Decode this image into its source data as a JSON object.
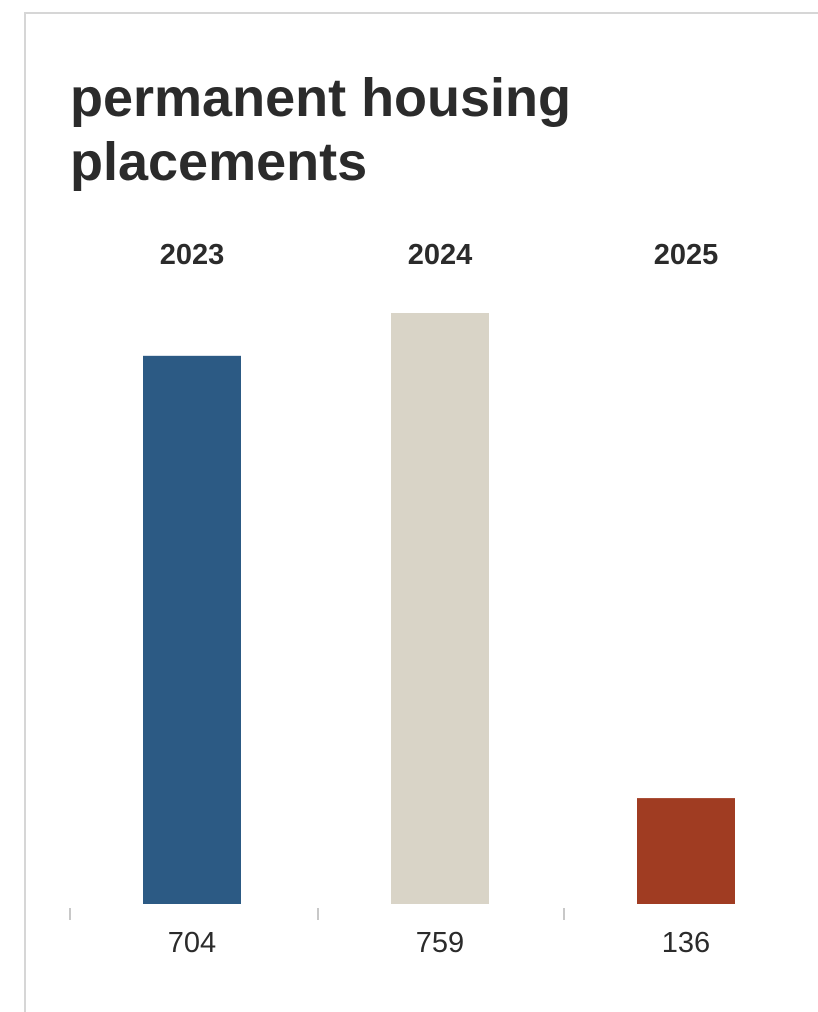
{
  "chart_data": {
    "type": "bar",
    "title": "permanent housing placements",
    "categories": [
      "2023",
      "2024",
      "2025"
    ],
    "values": [
      704,
      759,
      136
    ],
    "value_labels": [
      "704",
      "759",
      "136"
    ],
    "colors": [
      "#2c5a84",
      "#d9d4c7",
      "#a03c22"
    ],
    "ylim": [
      0,
      759
    ],
    "grid": false,
    "legend": "none",
    "xlabel": "",
    "ylabel": ""
  }
}
